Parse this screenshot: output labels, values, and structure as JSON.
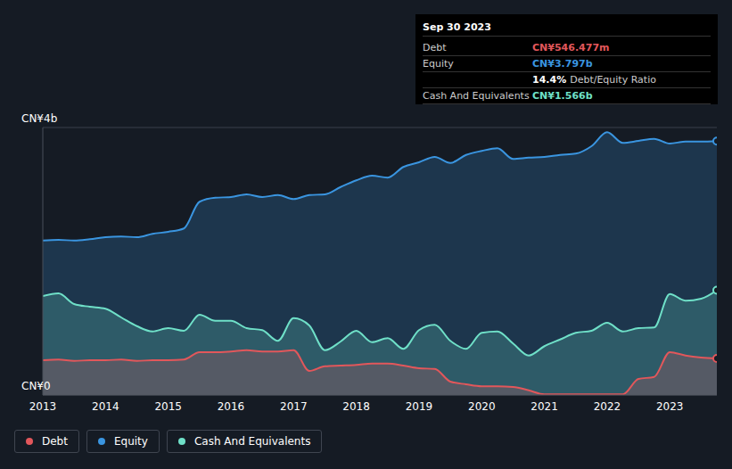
{
  "chart_data": {
    "type": "area",
    "x": [
      2013,
      2013.25,
      2013.5,
      2013.75,
      2014,
      2014.25,
      2014.5,
      2014.75,
      2015,
      2015.25,
      2015.5,
      2015.75,
      2016,
      2016.25,
      2016.5,
      2016.75,
      2017,
      2017.25,
      2017.5,
      2017.75,
      2018,
      2018.25,
      2018.5,
      2018.75,
      2019,
      2019.25,
      2019.5,
      2019.75,
      2020,
      2020.25,
      2020.5,
      2020.75,
      2021,
      2021.25,
      2021.5,
      2021.75,
      2022,
      2022.25,
      2022.5,
      2022.75,
      2023,
      2023.25,
      2023.5,
      2023.75
    ],
    "xlim": [
      2013,
      2023.75
    ],
    "xticks": [
      2013,
      2014,
      2015,
      2016,
      2017,
      2018,
      2019,
      2020,
      2021,
      2022,
      2023
    ],
    "ylim": [
      0,
      4
    ],
    "yticks": [
      {
        "value": 0,
        "label": "CN¥0"
      },
      {
        "value": 4,
        "label": "CN¥4b"
      }
    ],
    "grid": true,
    "legend": "bottom left",
    "series": [
      {
        "name": "Equity",
        "color": "#3a95e0",
        "values": [
          2.31,
          2.32,
          2.31,
          2.33,
          2.36,
          2.37,
          2.36,
          2.41,
          2.44,
          2.49,
          2.89,
          2.95,
          2.96,
          3.0,
          2.96,
          2.99,
          2.93,
          2.99,
          3.0,
          3.11,
          3.21,
          3.28,
          3.25,
          3.41,
          3.48,
          3.56,
          3.47,
          3.59,
          3.65,
          3.69,
          3.53,
          3.55,
          3.56,
          3.59,
          3.61,
          3.72,
          3.93,
          3.77,
          3.8,
          3.83,
          3.76,
          3.79,
          3.79,
          3.797
        ]
      },
      {
        "name": "Cash And Equivalents",
        "color": "#6fe0c8",
        "values": [
          1.48,
          1.52,
          1.36,
          1.32,
          1.29,
          1.16,
          1.03,
          0.95,
          1.0,
          0.96,
          1.2,
          1.11,
          1.11,
          1.0,
          0.97,
          0.81,
          1.15,
          1.04,
          0.67,
          0.8,
          0.96,
          0.79,
          0.85,
          0.69,
          0.97,
          1.05,
          0.81,
          0.69,
          0.93,
          0.95,
          0.77,
          0.59,
          0.73,
          0.83,
          0.93,
          0.96,
          1.08,
          0.95,
          1.0,
          1.01,
          1.51,
          1.41,
          1.44,
          1.566
        ]
      },
      {
        "name": "Debt",
        "color": "#e2575b",
        "values": [
          0.52,
          0.53,
          0.51,
          0.52,
          0.52,
          0.53,
          0.51,
          0.52,
          0.52,
          0.53,
          0.64,
          0.64,
          0.65,
          0.67,
          0.65,
          0.65,
          0.67,
          0.36,
          0.43,
          0.44,
          0.45,
          0.47,
          0.47,
          0.44,
          0.4,
          0.39,
          0.2,
          0.16,
          0.13,
          0.13,
          0.12,
          0.07,
          0.01,
          0.01,
          0.01,
          0.01,
          0.01,
          0.01,
          0.24,
          0.27,
          0.64,
          0.59,
          0.56,
          0.546
        ]
      }
    ],
    "annotation": {
      "title": "Sep 30 2023",
      "rows": [
        {
          "label": "Debt",
          "value": "CN¥546.477m",
          "color": "#e2575b"
        },
        {
          "label": "Equity",
          "value": "CN¥3.797b",
          "color": "#3a95e0"
        },
        {
          "label": "Debt/Equity Ratio",
          "value": "14.4%"
        },
        {
          "label": "Cash And Equivalents",
          "value": "CN¥1.566b",
          "color": "#6fe0c8"
        }
      ]
    }
  }
}
